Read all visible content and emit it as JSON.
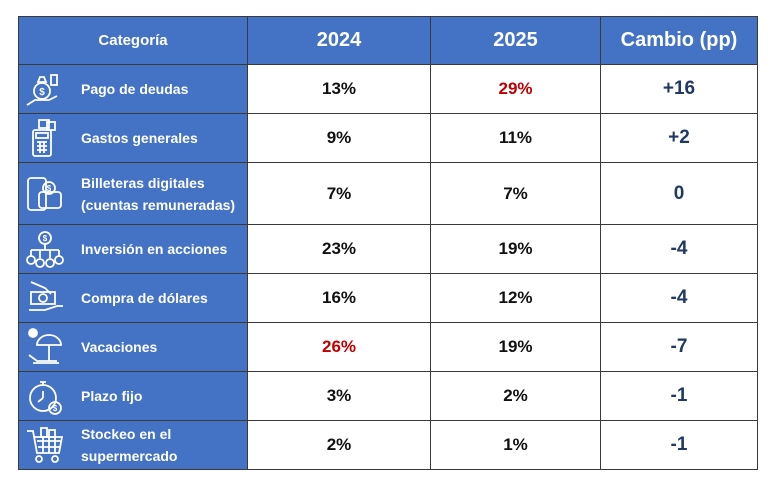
{
  "chart_data": {
    "type": "table",
    "columns": [
      "Categoría",
      "2024",
      "2025",
      "Cambio (pp)"
    ],
    "rows": [
      {
        "icon": "money-bag-hand-icon",
        "category": "Pago de deudas",
        "y2024": "13%",
        "y2025": "29%",
        "change": "+16",
        "highlight": "2025"
      },
      {
        "icon": "payment-terminal-icon",
        "category": "Gastos generales",
        "y2024": "9%",
        "y2025": "11%",
        "change": "+2",
        "highlight": ""
      },
      {
        "icon": "digital-wallet-icon",
        "category": "Billeteras digitales (cuentas remuneradas)",
        "y2024": "7%",
        "y2025": "7%",
        "change": "0",
        "highlight": ""
      },
      {
        "icon": "investment-network-icon",
        "category": "Inversión en acciones",
        "y2024": "23%",
        "y2025": "19%",
        "change": "-4",
        "highlight": ""
      },
      {
        "icon": "cash-exchange-icon",
        "category": "Compra de dólares",
        "y2024": "16%",
        "y2025": "12%",
        "change": "-4",
        "highlight": ""
      },
      {
        "icon": "beach-umbrella-icon",
        "category": "Vacaciones",
        "y2024": "26%",
        "y2025": "19%",
        "change": "-7",
        "highlight": "2024"
      },
      {
        "icon": "stopwatch-dollar-icon",
        "category": "Plazo fijo",
        "y2024": "3%",
        "y2025": "2%",
        "change": "-1",
        "highlight": ""
      },
      {
        "icon": "shopping-cart-icon",
        "category": "Stockeo en el supermercado",
        "y2024": "2%",
        "y2025": "1%",
        "change": "-1",
        "highlight": ""
      }
    ],
    "colors": {
      "header": "#4472c4",
      "highlight": "#c00000",
      "change_text": "#1f3864"
    }
  }
}
